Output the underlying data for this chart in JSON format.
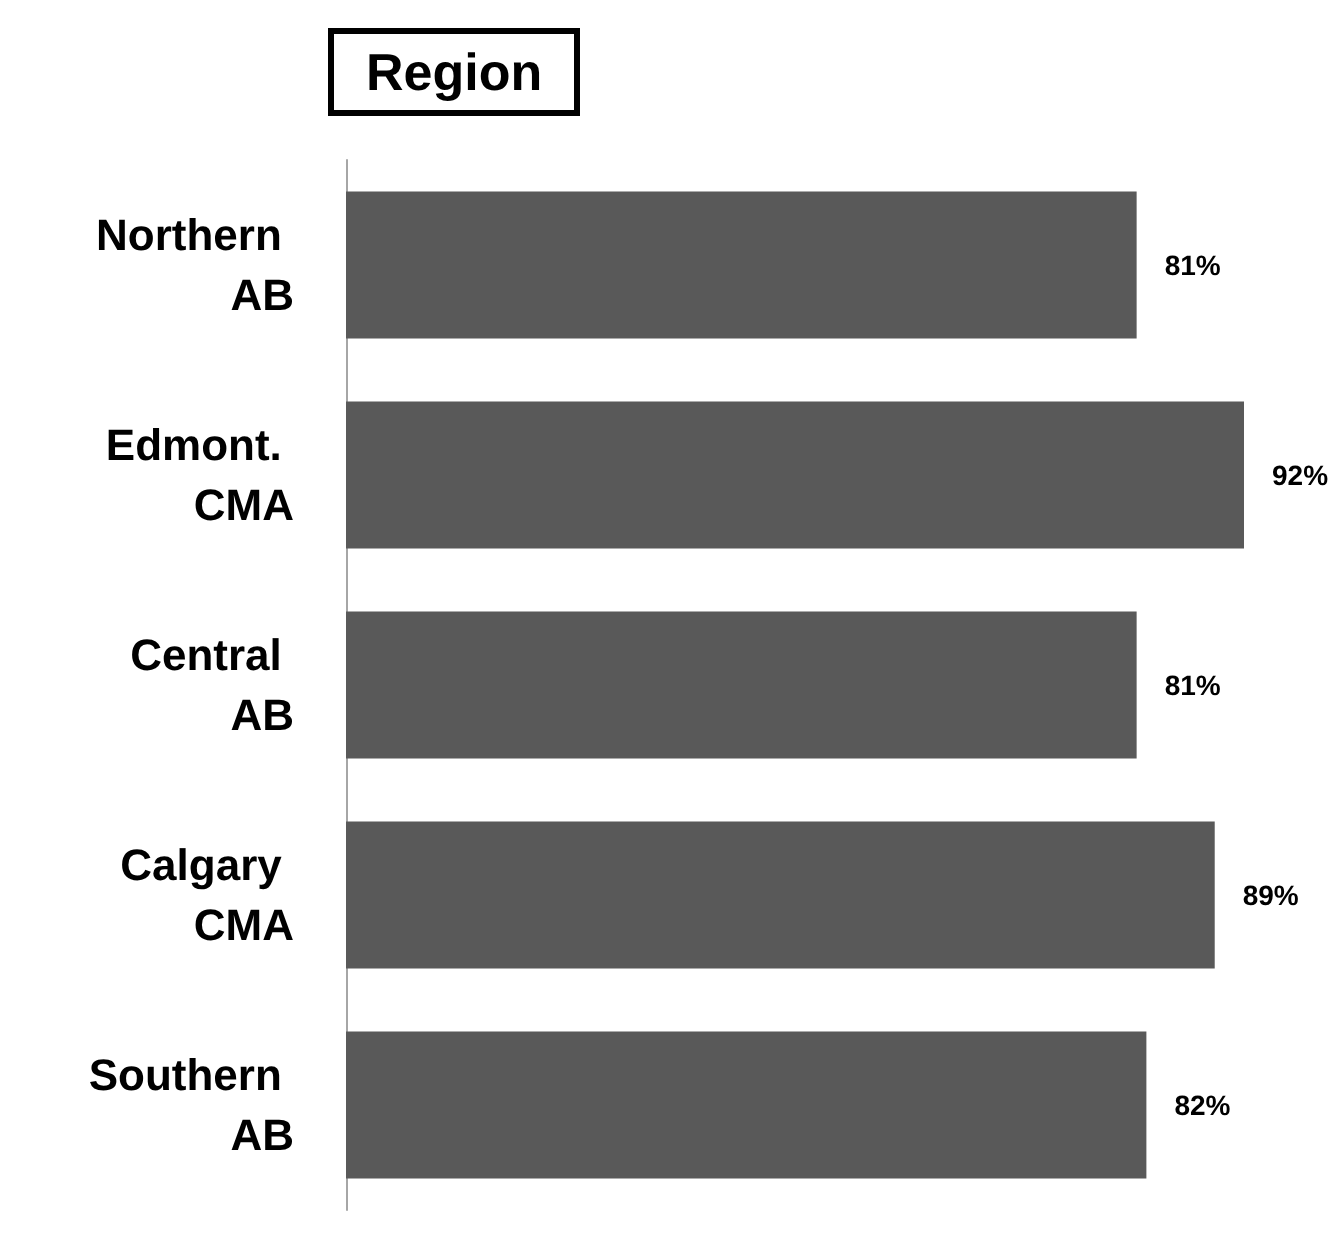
{
  "chart_data": {
    "type": "bar",
    "title": "Region",
    "orientation": "horizontal",
    "categories": [
      "Northern AB",
      "Edmont. CMA",
      "Central AB",
      "Calgary CMA",
      "Southern AB"
    ],
    "values": [
      81,
      92,
      81,
      89,
      82
    ],
    "value_labels": [
      "81%",
      "92%",
      "81%",
      "89%",
      "82%"
    ],
    "color": "#595959"
  }
}
